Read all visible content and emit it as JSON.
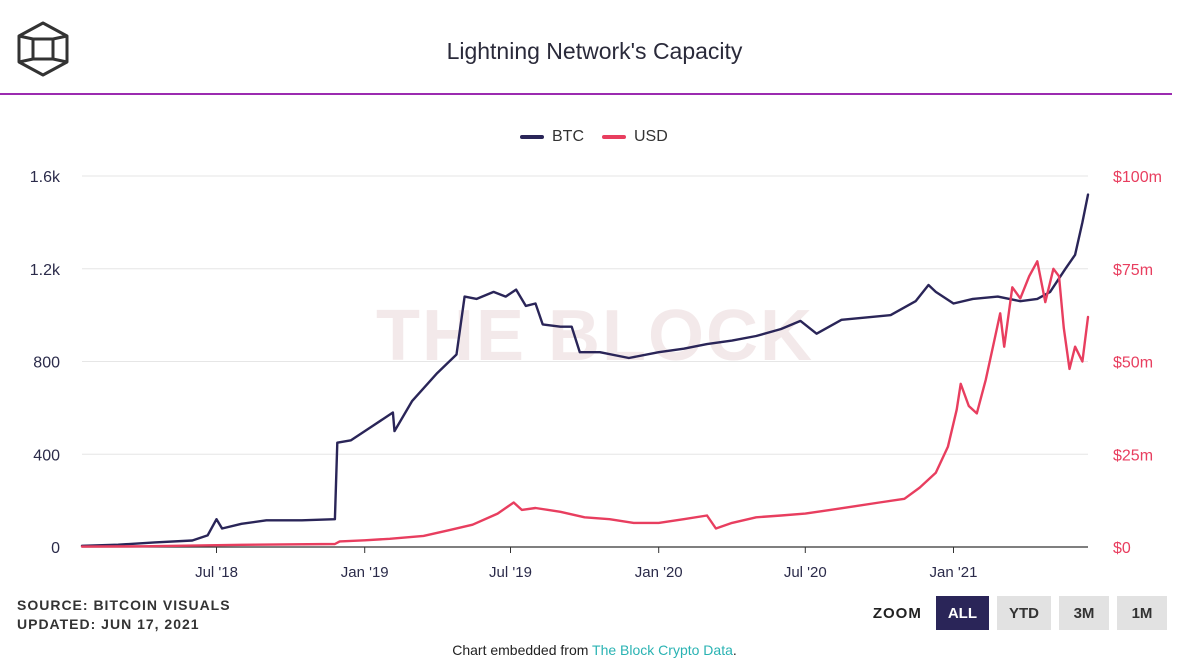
{
  "header": {
    "title": "Lightning Network's Capacity",
    "logo_icon": "the-block-cube-logo"
  },
  "legend": [
    {
      "label": "BTC",
      "color": "#2a2558"
    },
    {
      "label": "USD",
      "color": "#e83e5f"
    }
  ],
  "watermark": "THE BLOCK",
  "footer": {
    "source_line": "SOURCE: BITCOIN VISUALS",
    "updated_line": "UPDATED: JUN 17, 2021",
    "embed_prefix": "Chart embedded from ",
    "embed_link": "The Block Crypto Data",
    "embed_suffix": "."
  },
  "zoom": {
    "label": "ZOOM",
    "buttons": [
      "ALL",
      "YTD",
      "3M",
      "1M"
    ],
    "active": "ALL"
  },
  "chart_data": {
    "type": "line",
    "title": "Lightning Network's Capacity",
    "x_range": [
      "2018-01-15",
      "2021-06-17"
    ],
    "x_ticks": [
      {
        "date": "2018-07-01",
        "label": "Jul '18"
      },
      {
        "date": "2019-01-01",
        "label": "Jan '19"
      },
      {
        "date": "2019-07-01",
        "label": "Jul '19"
      },
      {
        "date": "2020-01-01",
        "label": "Jan '20"
      },
      {
        "date": "2020-07-01",
        "label": "Jul '20"
      },
      {
        "date": "2021-01-01",
        "label": "Jan '21"
      }
    ],
    "y_left": {
      "min": 0,
      "max": 1600,
      "ticks": [
        0,
        400,
        800,
        1200,
        1600
      ],
      "tick_labels": [
        "0",
        "400",
        "800",
        "1.2k",
        "1.6k"
      ]
    },
    "y_right": {
      "min": 0,
      "max": 100,
      "ticks": [
        0,
        25,
        50,
        75,
        100
      ],
      "tick_labels": [
        "$0",
        "$25m",
        "$50m",
        "$75m",
        "$100m"
      ]
    },
    "grid": true,
    "legend_position": "top-center",
    "series": [
      {
        "name": "BTC",
        "axis": "left",
        "color": "#2a2558",
        "points": [
          [
            "2018-01-15",
            5
          ],
          [
            "2018-03-01",
            10
          ],
          [
            "2018-04-15",
            20
          ],
          [
            "2018-06-01",
            28
          ],
          [
            "2018-06-20",
            50
          ],
          [
            "2018-07-01",
            120
          ],
          [
            "2018-07-08",
            80
          ],
          [
            "2018-08-01",
            100
          ],
          [
            "2018-09-01",
            115
          ],
          [
            "2018-10-15",
            115
          ],
          [
            "2018-11-25",
            120
          ],
          [
            "2018-11-28",
            450
          ],
          [
            "2018-12-15",
            460
          ],
          [
            "2019-01-10",
            520
          ],
          [
            "2019-02-05",
            580
          ],
          [
            "2019-02-07",
            500
          ],
          [
            "2019-03-01",
            630
          ],
          [
            "2019-04-01",
            750
          ],
          [
            "2019-04-25",
            830
          ],
          [
            "2019-05-05",
            1080
          ],
          [
            "2019-05-20",
            1070
          ],
          [
            "2019-06-10",
            1100
          ],
          [
            "2019-06-25",
            1080
          ],
          [
            "2019-07-08",
            1110
          ],
          [
            "2019-07-20",
            1040
          ],
          [
            "2019-08-01",
            1050
          ],
          [
            "2019-08-10",
            960
          ],
          [
            "2019-09-01",
            950
          ],
          [
            "2019-09-15",
            950
          ],
          [
            "2019-09-25",
            840
          ],
          [
            "2019-10-20",
            840
          ],
          [
            "2019-11-25",
            815
          ],
          [
            "2020-01-01",
            840
          ],
          [
            "2020-02-01",
            855
          ],
          [
            "2020-03-01",
            875
          ],
          [
            "2020-04-01",
            890
          ],
          [
            "2020-05-01",
            910
          ],
          [
            "2020-06-01",
            940
          ],
          [
            "2020-06-25",
            975
          ],
          [
            "2020-07-15",
            920
          ],
          [
            "2020-08-15",
            980
          ],
          [
            "2020-09-15",
            990
          ],
          [
            "2020-10-15",
            1000
          ],
          [
            "2020-11-15",
            1060
          ],
          [
            "2020-12-01",
            1130
          ],
          [
            "2020-12-10",
            1100
          ],
          [
            "2021-01-01",
            1050
          ],
          [
            "2021-01-25",
            1070
          ],
          [
            "2021-02-25",
            1080
          ],
          [
            "2021-03-25",
            1060
          ],
          [
            "2021-04-15",
            1070
          ],
          [
            "2021-05-01",
            1100
          ],
          [
            "2021-05-20",
            1200
          ],
          [
            "2021-06-01",
            1260
          ],
          [
            "2021-06-10",
            1400
          ],
          [
            "2021-06-17",
            1520
          ]
        ]
      },
      {
        "name": "USD",
        "axis": "right",
        "color": "#e83e5f",
        "points": [
          [
            "2018-01-15",
            0.1
          ],
          [
            "2018-04-01",
            0.2
          ],
          [
            "2018-08-01",
            0.6
          ],
          [
            "2018-11-25",
            0.8
          ],
          [
            "2018-12-01",
            1.5
          ],
          [
            "2019-01-01",
            1.8
          ],
          [
            "2019-02-01",
            2.2
          ],
          [
            "2019-03-15",
            3.0
          ],
          [
            "2019-04-15",
            4.5
          ],
          [
            "2019-05-15",
            6.0
          ],
          [
            "2019-06-15",
            9.0
          ],
          [
            "2019-07-05",
            12.0
          ],
          [
            "2019-07-15",
            10.0
          ],
          [
            "2019-08-01",
            10.5
          ],
          [
            "2019-09-01",
            9.5
          ],
          [
            "2019-10-01",
            8.0
          ],
          [
            "2019-11-01",
            7.5
          ],
          [
            "2019-12-01",
            6.5
          ],
          [
            "2020-01-01",
            6.5
          ],
          [
            "2020-02-01",
            7.5
          ],
          [
            "2020-03-01",
            8.5
          ],
          [
            "2020-03-12",
            5.0
          ],
          [
            "2020-04-01",
            6.5
          ],
          [
            "2020-05-01",
            8.0
          ],
          [
            "2020-06-01",
            8.5
          ],
          [
            "2020-07-01",
            9.0
          ],
          [
            "2020-08-01",
            10.0
          ],
          [
            "2020-09-01",
            11.0
          ],
          [
            "2020-10-01",
            12.0
          ],
          [
            "2020-11-01",
            13.0
          ],
          [
            "2020-11-20",
            16.0
          ],
          [
            "2020-12-10",
            20.0
          ],
          [
            "2020-12-25",
            27.0
          ],
          [
            "2021-01-05",
            37.0
          ],
          [
            "2021-01-10",
            44.0
          ],
          [
            "2021-01-20",
            38.0
          ],
          [
            "2021-01-30",
            36.0
          ],
          [
            "2021-02-10",
            45.0
          ],
          [
            "2021-02-20",
            55.0
          ],
          [
            "2021-02-28",
            63.0
          ],
          [
            "2021-03-05",
            54.0
          ],
          [
            "2021-03-15",
            70.0
          ],
          [
            "2021-03-25",
            67.0
          ],
          [
            "2021-04-05",
            73.0
          ],
          [
            "2021-04-15",
            77.0
          ],
          [
            "2021-04-25",
            66.0
          ],
          [
            "2021-05-05",
            75.0
          ],
          [
            "2021-05-12",
            73.0
          ],
          [
            "2021-05-18",
            59.0
          ],
          [
            "2021-05-25",
            48.0
          ],
          [
            "2021-06-01",
            54.0
          ],
          [
            "2021-06-10",
            50.0
          ],
          [
            "2021-06-17",
            62.0
          ]
        ]
      }
    ]
  }
}
